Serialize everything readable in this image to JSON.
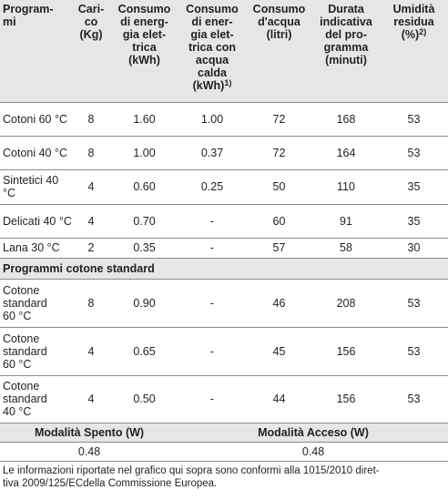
{
  "headers": [
    {
      "text": "Program-\nmi",
      "sup": ""
    },
    {
      "text": "Cari-\nco\n(Kg)",
      "sup": ""
    },
    {
      "text": "Consumo\ndi energ-\ngia elet-\ntrica\n(kWh)",
      "sup": ""
    },
    {
      "text": "Consumo\ndi ener-\ngia elet-\ntrica con\nacqua\ncalda\n(kWh)",
      "sup": "1)"
    },
    {
      "text": "Consumo\nd'acqua\n(litri)",
      "sup": ""
    },
    {
      "text": "Durata\nindicativa\ndel pro-\ngramma\n(minuti)",
      "sup": ""
    },
    {
      "text": "Umidità\nresidua\n(%)",
      "sup": "2)"
    }
  ],
  "rows": [
    [
      "Cotoni 60 °C",
      "8",
      "1.60",
      "1.00",
      "72",
      "168",
      "53"
    ],
    [
      "Cotoni 40 °C",
      "8",
      "1.00",
      "0.37",
      "72",
      "164",
      "53"
    ],
    [
      "Sintetici 40 °C",
      "4",
      "0.60",
      "0.25",
      "50",
      "110",
      "35"
    ],
    [
      "Delicati 40 °C",
      "4",
      "0.70",
      "-",
      "60",
      "91",
      "35"
    ],
    [
      "Lana 30 °C",
      "2",
      "0.35",
      "-",
      "57",
      "58",
      "30"
    ]
  ],
  "section_title": "Programmi cotone standard",
  "standard_rows": [
    [
      "Cotone\nstandard\n60 °C",
      "8",
      "0.90",
      "-",
      "46",
      "208",
      "53"
    ],
    [
      "Cotone\nstandard\n60 °C",
      "4",
      "0.65",
      "-",
      "45",
      "156",
      "53"
    ],
    [
      "Cotone\nstandard\n40 °C",
      "4",
      "0.50",
      "-",
      "44",
      "156",
      "53"
    ]
  ],
  "power": {
    "off_label": "Modalità Spento (W)",
    "on_label": "Modalità Acceso (W)",
    "off_value": "0.48",
    "on_value": "0.48"
  },
  "footnote": "Le informazioni riportate nel grafico qui sopra sono conformi alla 1015/2010 diret-\ntiva 2009/125/ECdella Commissione Europea."
}
